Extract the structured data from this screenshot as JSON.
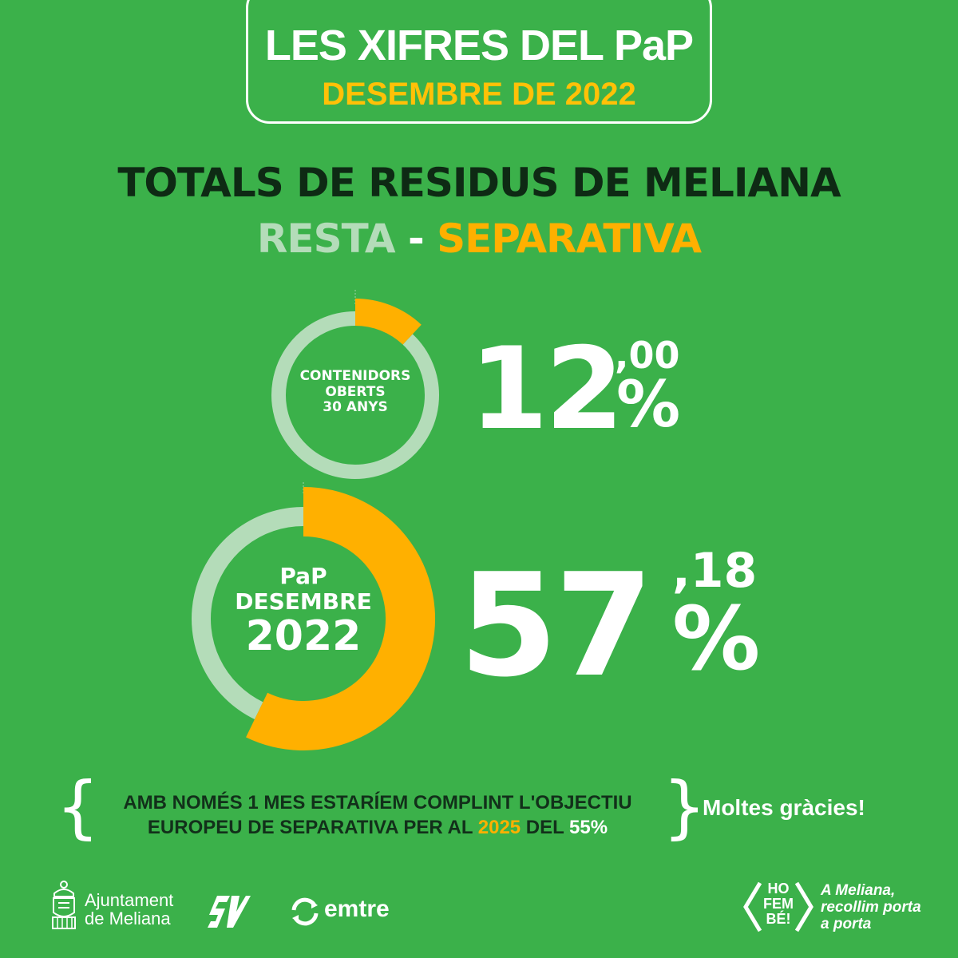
{
  "header": {
    "title": "LES XIFRES DEL PaP",
    "subtitle": "DESEMBRE DE 2022"
  },
  "main_title": "TOTALS DE RESIDUS DE MELIANA",
  "legend": {
    "resta": "RESTA",
    "separator": "-",
    "separativa": "SEPARATIVA"
  },
  "colors": {
    "background": "#3bb14a",
    "resta": "#b4dcb9",
    "separativa": "#ffb000",
    "title_dark": "#0e2a14",
    "white": "#ffffff"
  },
  "chart_data": [
    {
      "type": "pie",
      "donut": true,
      "label_lines": [
        "CONTENIDORS",
        "OBERTS",
        "30 ANYS"
      ],
      "slices": [
        {
          "name": "SEPARATIVA",
          "value": 12.0
        },
        {
          "name": "RESTA",
          "value": 88.0
        }
      ],
      "value_integer": "12",
      "value_decimal": ",00",
      "value_unit": "%"
    },
    {
      "type": "pie",
      "donut": true,
      "label_lines": [
        "PaP",
        "DESEMBRE",
        "2022"
      ],
      "slices": [
        {
          "name": "SEPARATIVA",
          "value": 57.18
        },
        {
          "name": "RESTA",
          "value": 42.82
        }
      ],
      "value_integer": "57",
      "value_decimal": ",18",
      "value_unit": "%"
    }
  ],
  "note": {
    "open_brace": "{",
    "close_brace": "}",
    "line1": "AMB NOMÉS 1 MES ESTARÍEM COMPLINT L'OBJECTIU",
    "line2_a": "EUROPEU DE SEPARATIVA PER AL ",
    "year": "2025",
    "line2_b": " DEL ",
    "target": "55%"
  },
  "thanks": "Moltes gràcies!",
  "footer": {
    "ajuntament_line1": "Ajuntament",
    "ajuntament_line2": "de Meliana",
    "emtre": "emtre",
    "hofembe_lines": [
      "HO",
      "FEM",
      "BÉ!"
    ],
    "slogan_lines": [
      "A Meliana,",
      "recollim porta",
      "a porta"
    ]
  }
}
